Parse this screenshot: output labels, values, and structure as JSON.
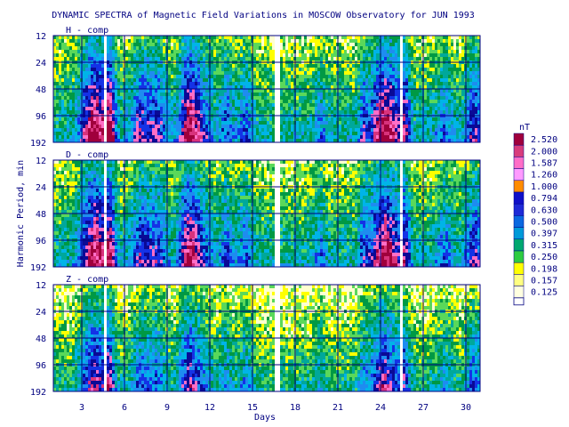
{
  "chart_data": {
    "type": "heatmap",
    "title": "DYNAMIC SPECTRA of Magnetic Field Variations in MOSCOW Observatory for JUN 1993",
    "xlabel": "Days",
    "ylabel": "Harmonic Period, min",
    "xlim": [
      1,
      31
    ],
    "x_ticks": [
      "3",
      "6",
      "9",
      "12",
      "15",
      "18",
      "21",
      "24",
      "27",
      "30"
    ],
    "x_tick_values": [
      3,
      6,
      9,
      12,
      15,
      18,
      21,
      24,
      27,
      30
    ],
    "y_ticks": [
      "12",
      "24",
      "48",
      "96",
      "192"
    ],
    "y_scale": "log2",
    "panels": [
      {
        "name": "H - comp",
        "gaps_days": [
          [
            4.55,
            4.8
          ],
          [
            16.6,
            17.0
          ],
          [
            25.4,
            25.55
          ]
        ]
      },
      {
        "name": "D - comp",
        "gaps_days": [
          [
            4.55,
            4.8
          ],
          [
            16.6,
            17.0
          ],
          [
            25.4,
            25.55
          ]
        ]
      },
      {
        "name": "Z - comp",
        "gaps_days": [
          [
            4.55,
            4.8
          ],
          [
            16.6,
            17.0
          ],
          [
            25.4,
            25.55
          ]
        ]
      }
    ],
    "colorbar": {
      "unit": "nT",
      "labels": [
        "2.520",
        "2.000",
        "1.587",
        "1.260",
        "1.000",
        "0.794",
        "0.630",
        "0.500",
        "0.397",
        "0.315",
        "0.250",
        "0.198",
        "0.157",
        "0.125"
      ],
      "colors": [
        "#a0003c",
        "#d83c7c",
        "#ff6ec7",
        "#ff9aff",
        "#ff8c00",
        "#1010c8",
        "#1e2ad6",
        "#0a68e0",
        "#009ad8",
        "#00a870",
        "#2ecc40",
        "#ffff00",
        "#ffff80",
        "#ffffe0"
      ]
    },
    "grid": true,
    "colors": {
      "frame": "#000080",
      "text": "#000080",
      "background": "#ffffff"
    }
  }
}
